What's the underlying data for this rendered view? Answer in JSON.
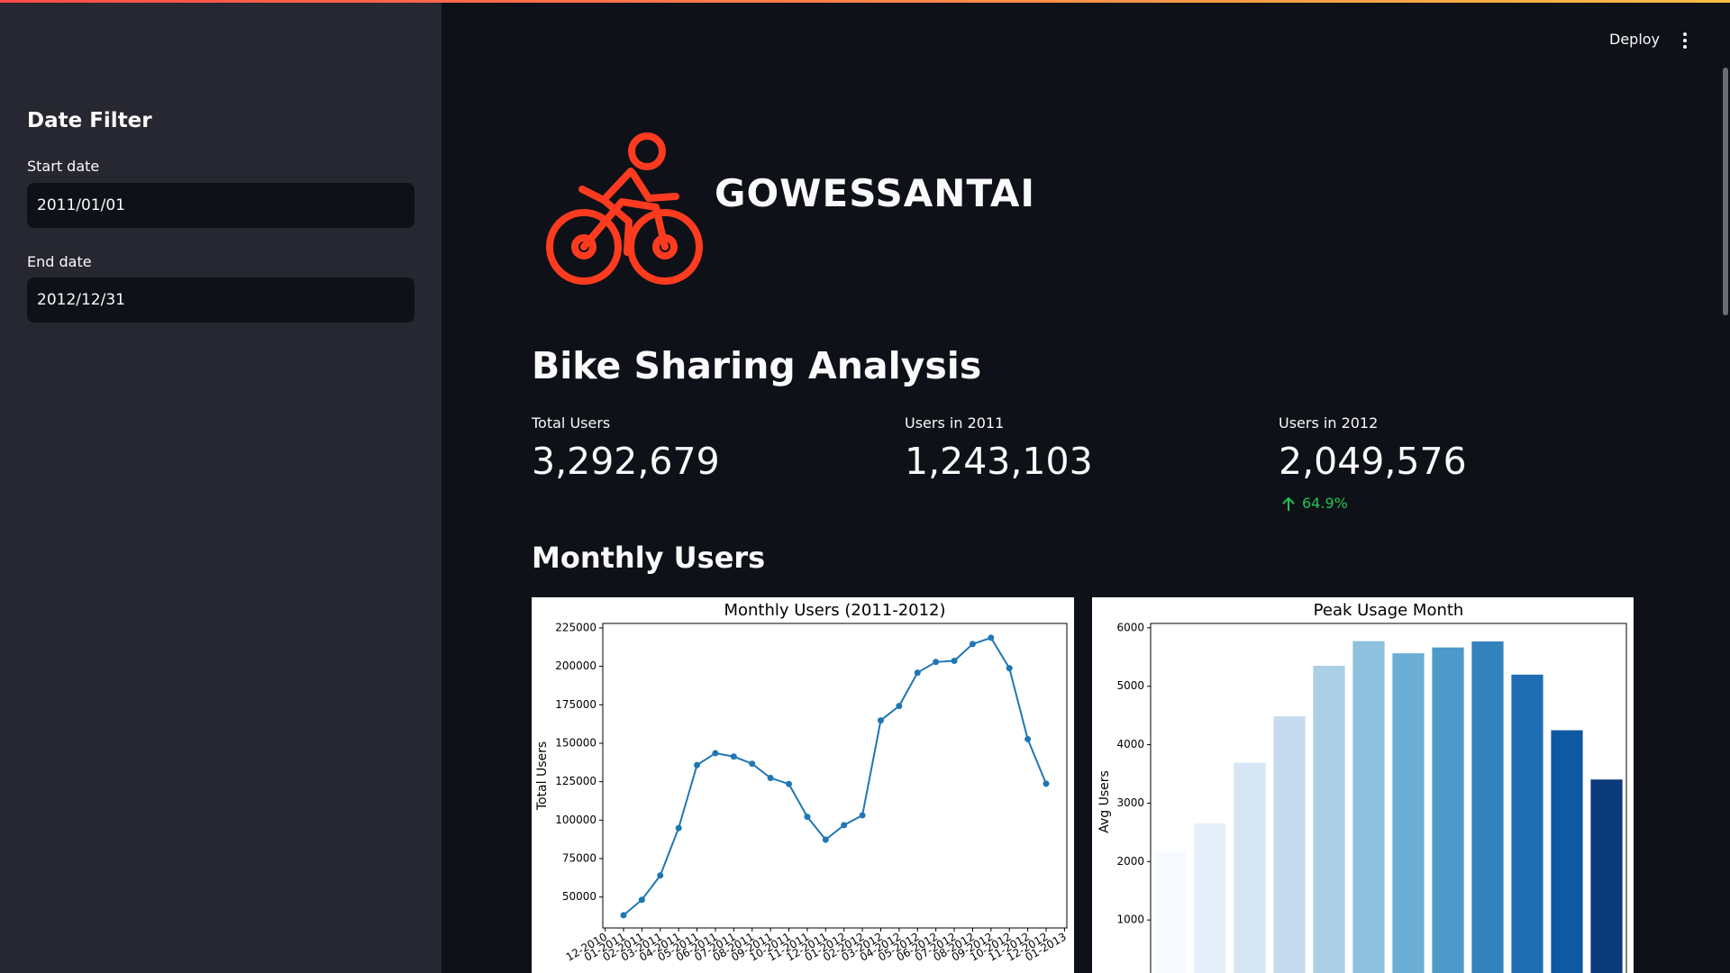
{
  "sidebar": {
    "title": "Date Filter",
    "start_label": "Start date",
    "start_value": "2011/01/01",
    "end_label": "End date",
    "end_value": "2012/12/31"
  },
  "header": {
    "deploy": "Deploy"
  },
  "logo": {
    "text": "GOWESSANTAI"
  },
  "title": "Bike Sharing Analysis",
  "metrics": [
    {
      "label": "Total Users",
      "value": "3,292,679"
    },
    {
      "label": "Users in 2011",
      "value": "1,243,103"
    },
    {
      "label": "Users in 2012",
      "value": "2,049,576",
      "delta": "64.9%"
    }
  ],
  "section": "Monthly Users",
  "chart_data": [
    {
      "type": "line",
      "title": "Monthly Users (2011-2012)",
      "ylabel": "Total Users",
      "categories": [
        "12-2010",
        "01-2011",
        "02-2011",
        "03-2011",
        "04-2011",
        "05-2011",
        "06-2011",
        "07-2011",
        "08-2011",
        "09-2011",
        "10-2011",
        "11-2011",
        "12-2011",
        "01-2012",
        "02-2012",
        "03-2012",
        "04-2012",
        "05-2012",
        "06-2012",
        "07-2012",
        "08-2012",
        "09-2012",
        "10-2012",
        "11-2012",
        "12-2012",
        "01-2013"
      ],
      "values": [
        null,
        38189,
        48215,
        64045,
        94870,
        135821,
        143512,
        141341,
        136691,
        127418,
        123511,
        102167,
        87323,
        96744,
        103137,
        164875,
        174224,
        195865,
        202830,
        203607,
        214503,
        218573,
        198841,
        152664,
        123713,
        null
      ],
      "color": "#1f77b4",
      "marker": true,
      "ylim": [
        29900,
        227900
      ],
      "yticks": [
        50000,
        75000,
        100000,
        125000,
        150000,
        175000,
        200000,
        225000
      ]
    },
    {
      "type": "bar",
      "title": "Peak Usage Month",
      "ylabel": "Avg Users",
      "values": [
        2176,
        2655,
        3692,
        4485,
        5350,
        5772,
        5564,
        5664,
        5767,
        5199,
        4247,
        3404
      ],
      "colors": [
        "#f7fbff",
        "#e6eff9",
        "#d6e6f4",
        "#c6dbef",
        "#abd0e6",
        "#8dc1dd",
        "#6aaed6",
        "#4d99ca",
        "#3282be",
        "#1f6eb3",
        "#0e59a2",
        "#0b3a7a"
      ],
      "ylim": [
        0,
        6075
      ],
      "yticks": [
        1000,
        2000,
        3000,
        4000,
        5000,
        6000
      ]
    }
  ]
}
